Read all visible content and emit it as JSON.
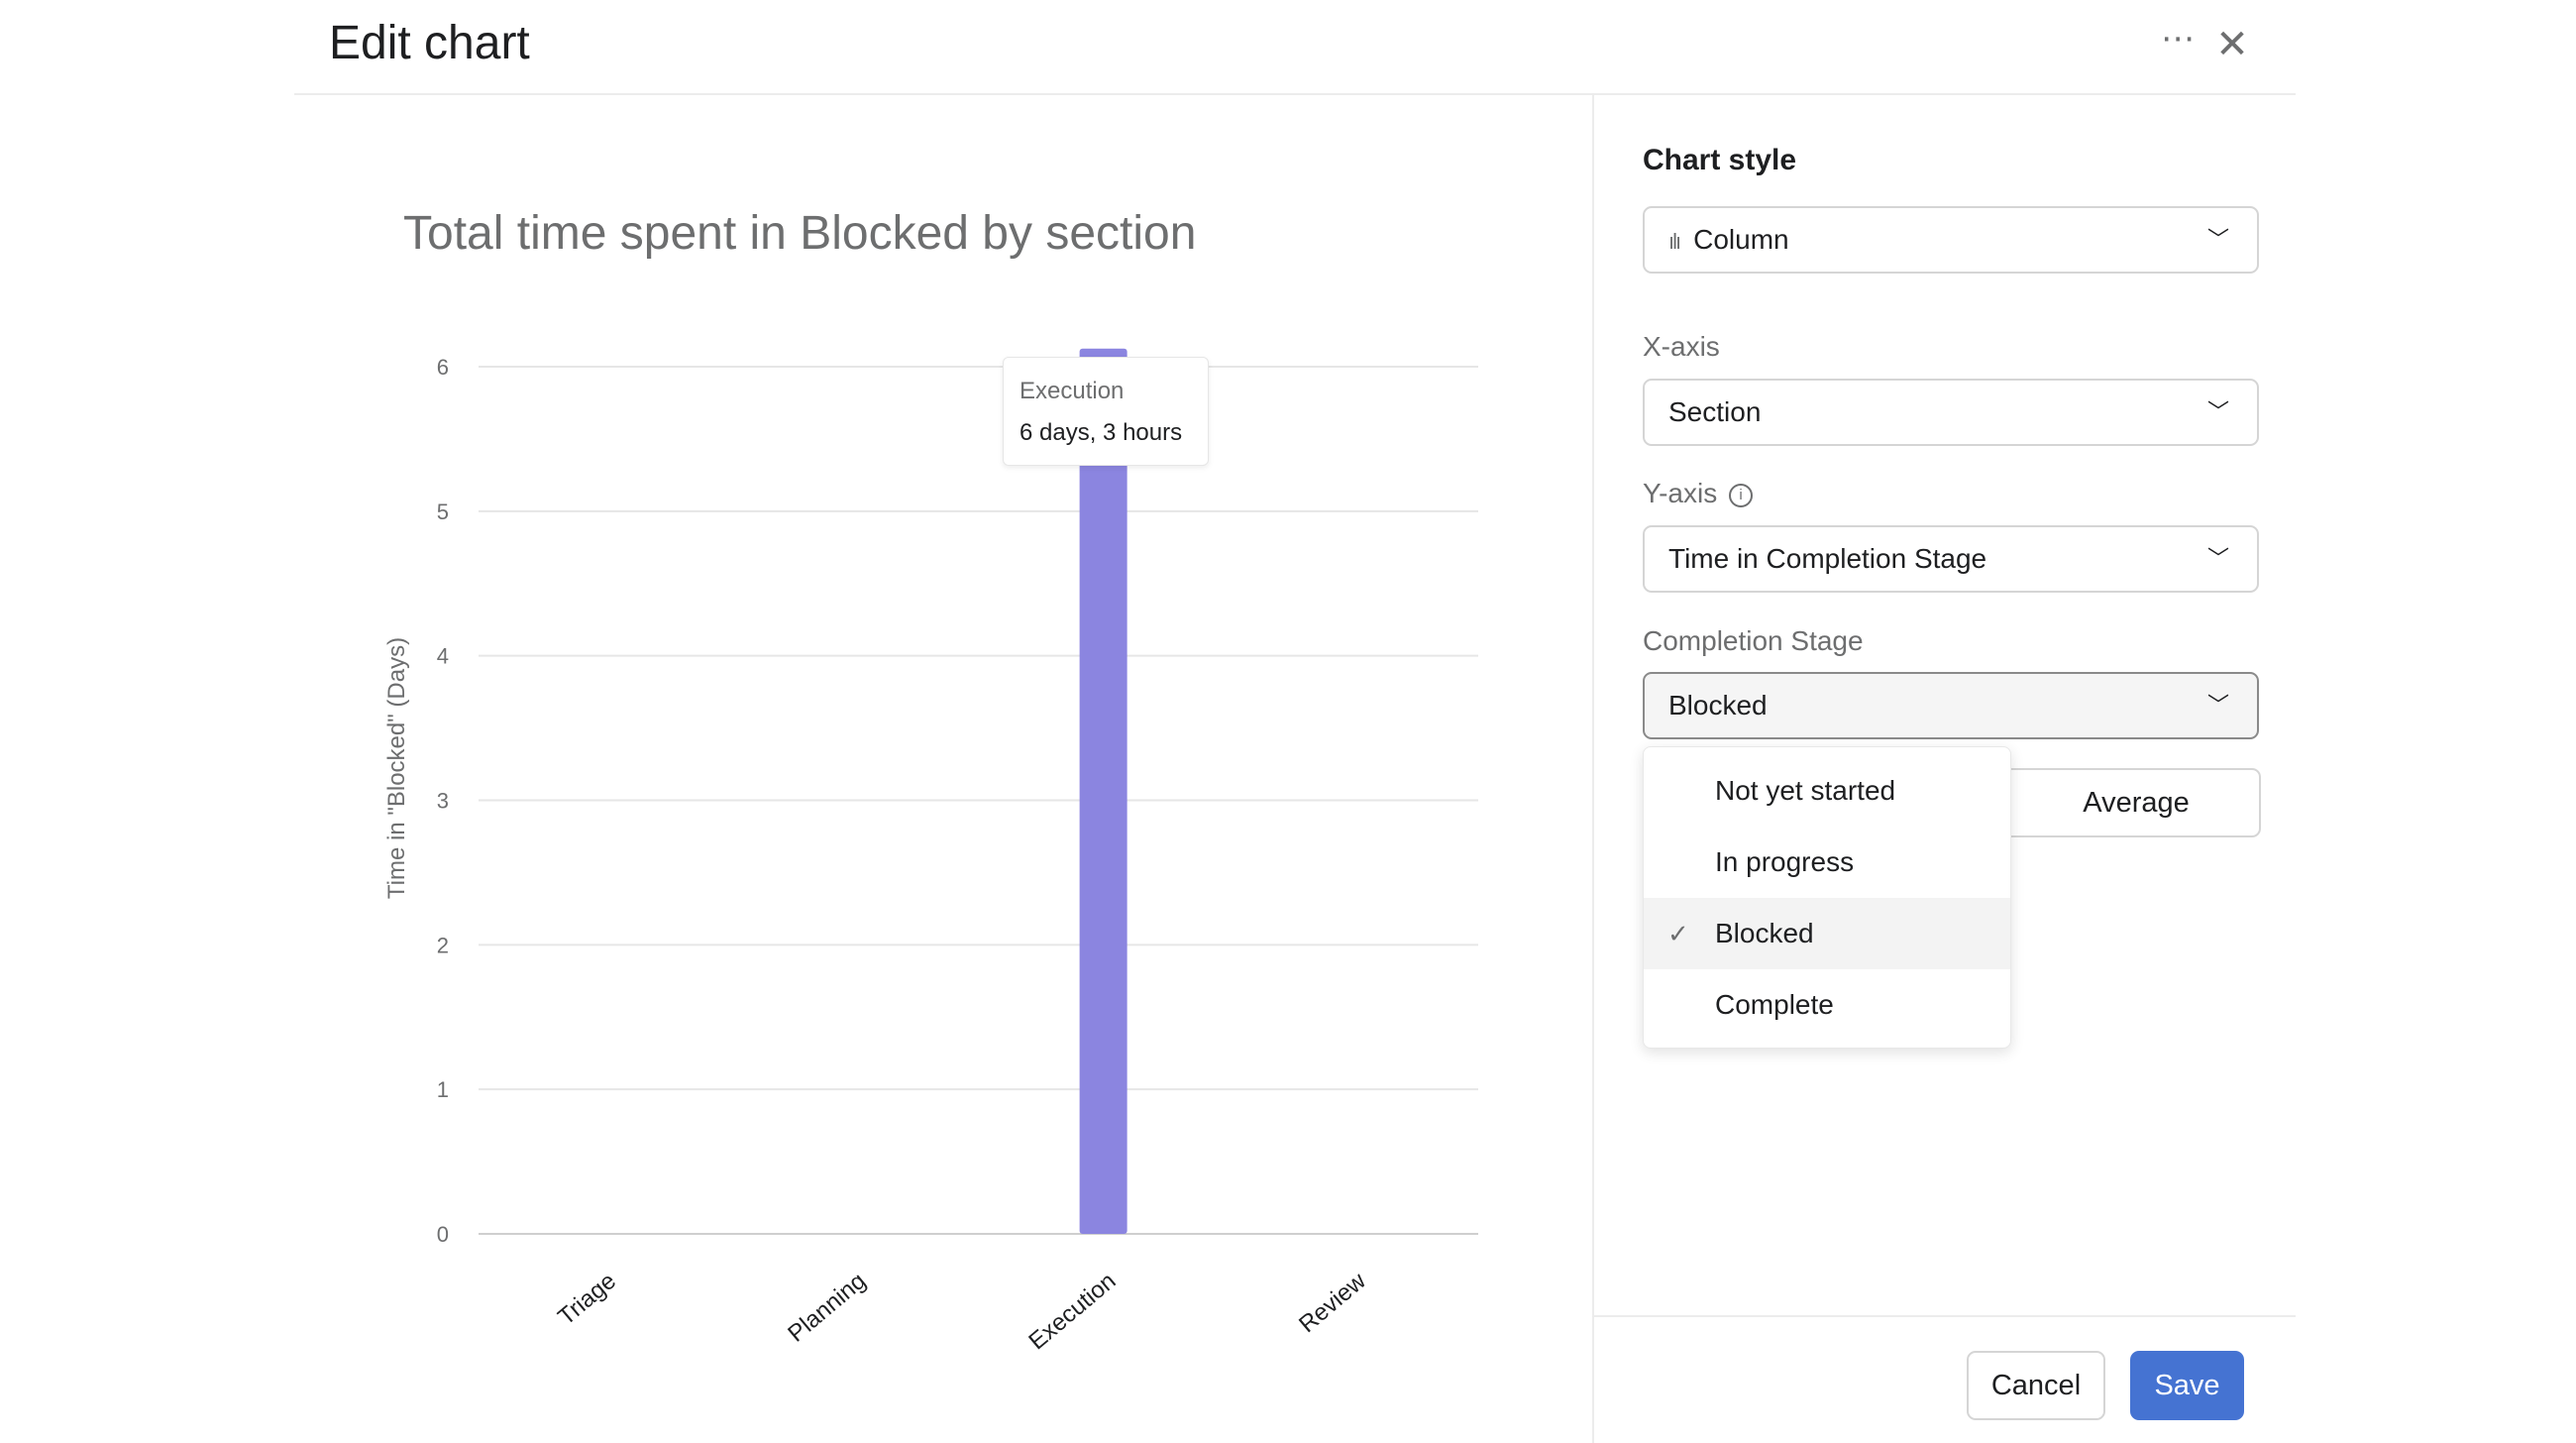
{
  "header": {
    "title": "Edit chart",
    "more_icon": "more-horizontal-icon",
    "close_icon": "close-icon"
  },
  "chart_data": {
    "type": "bar",
    "title": "Total time spent in Blocked by section",
    "categories": [
      "Triage",
      "Planning",
      "Execution",
      "Review"
    ],
    "values": [
      0,
      0,
      6.125,
      0
    ],
    "xlabel": "",
    "ylabel": "Time in \"Blocked\" (Days)",
    "ylim": [
      0,
      6
    ],
    "yticks": [
      0,
      1,
      2,
      3,
      4,
      5,
      6
    ],
    "grid": true,
    "bar_color": "#8b85e0",
    "tooltip": {
      "category": "Execution",
      "value": "6 days, 3 hours"
    }
  },
  "panel": {
    "chart_style_label": "Chart style",
    "chart_style_value": "Column",
    "xaxis_label": "X-axis",
    "xaxis_value": "Section",
    "yaxis_label": "Y-axis",
    "yaxis_value": "Time in Completion Stage",
    "stage_label": "Completion Stage",
    "stage_value": "Blocked",
    "stage_options": [
      "Not yet started",
      "In progress",
      "Blocked",
      "Complete"
    ],
    "aggregate_value": "Average"
  },
  "footer": {
    "cancel": "Cancel",
    "save": "Save",
    "save_color": "#4573d2"
  }
}
